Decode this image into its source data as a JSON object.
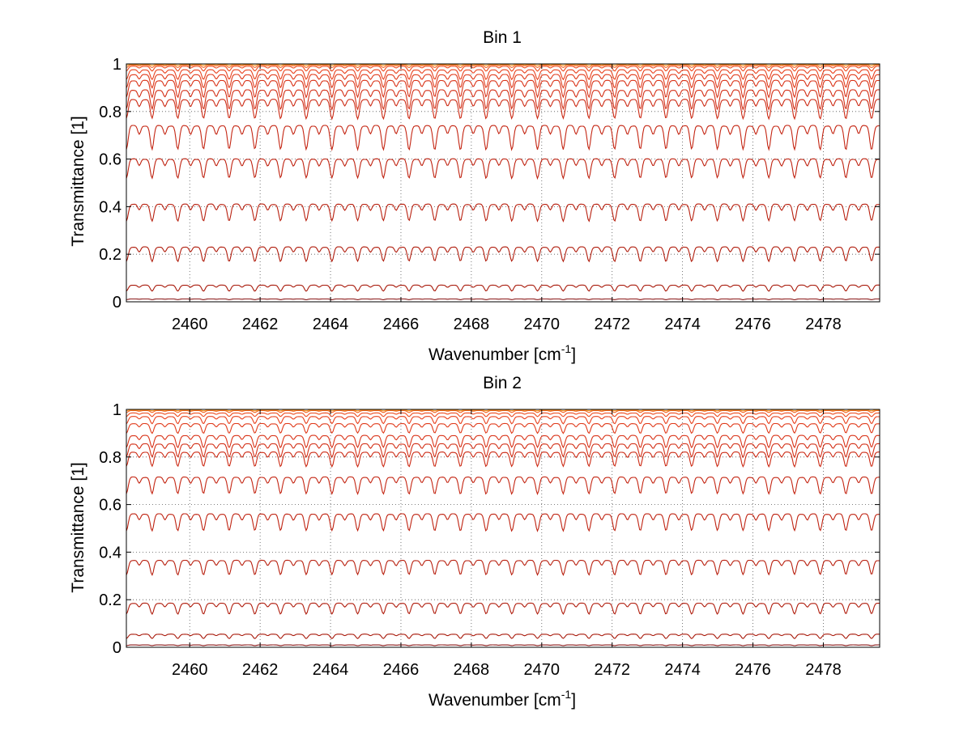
{
  "chart_data": [
    {
      "type": "line",
      "title": "Bin 1",
      "xlabel": "Wavenumber [cm",
      "xlabel_sup": "-1",
      "xlabel_end": "]",
      "ylabel": "Transmittance [1]",
      "xlim": [
        2458.2,
        2479.6
      ],
      "ylim": [
        0,
        1
      ],
      "grid": true,
      "xticks": [
        2460,
        2462,
        2464,
        2466,
        2468,
        2470,
        2472,
        2474,
        2476,
        2478
      ],
      "xtick_labels": [
        "2460",
        "2462",
        "2464",
        "2466",
        "2468",
        "2470",
        "2472",
        "2474",
        "2476",
        "2478"
      ],
      "yticks": [
        0,
        0.2,
        0.4,
        0.6,
        0.8,
        1
      ],
      "ytick_labels": [
        "0",
        "0.2",
        "0.4",
        "0.6",
        "0.8",
        "1"
      ],
      "line_spacing_cm-1": 0.73,
      "series": [
        {
          "color": "#f7941d",
          "baseline": 0.998,
          "dip": 0.004
        },
        {
          "color": "#f26522",
          "baseline": 0.995,
          "dip": 0.01
        },
        {
          "color": "#ee4b1f",
          "baseline": 0.99,
          "dip": 0.02
        },
        {
          "color": "#e8401c",
          "baseline": 0.975,
          "dip": 0.04
        },
        {
          "color": "#e03a1a",
          "baseline": 0.955,
          "dip": 0.055
        },
        {
          "color": "#d93318",
          "baseline": 0.93,
          "dip": 0.07
        },
        {
          "color": "#d32f16",
          "baseline": 0.89,
          "dip": 0.08
        },
        {
          "color": "#cc2a14",
          "baseline": 0.85,
          "dip": 0.08
        },
        {
          "color": "#c42512",
          "baseline": 0.74,
          "dip": 0.1
        },
        {
          "color": "#bf2210",
          "baseline": 0.6,
          "dip": 0.08
        },
        {
          "color": "#b81f0e",
          "baseline": 0.41,
          "dip": 0.07
        },
        {
          "color": "#b01c0c",
          "baseline": 0.23,
          "dip": 0.06
        },
        {
          "color": "#a8190a",
          "baseline": 0.07,
          "dip": 0.025
        },
        {
          "color": "#8b1a1a",
          "baseline": 0.012,
          "dip": 0.003
        }
      ]
    },
    {
      "type": "line",
      "title": "Bin 2",
      "xlabel": "Wavenumber [cm",
      "xlabel_sup": "-1",
      "xlabel_end": "]",
      "ylabel": "Transmittance [1]",
      "xlim": [
        2458.2,
        2479.6
      ],
      "ylim": [
        0,
        1
      ],
      "grid": true,
      "xticks": [
        2460,
        2462,
        2464,
        2466,
        2468,
        2470,
        2472,
        2474,
        2476,
        2478
      ],
      "xtick_labels": [
        "2460",
        "2462",
        "2464",
        "2466",
        "2468",
        "2470",
        "2472",
        "2474",
        "2476",
        "2478"
      ],
      "yticks": [
        0,
        0.2,
        0.4,
        0.6,
        0.8,
        1
      ],
      "ytick_labels": [
        "0",
        "0.2",
        "0.4",
        "0.6",
        "0.8",
        "1"
      ],
      "line_spacing_cm-1": 0.73,
      "series": [
        {
          "color": "#f7941d",
          "baseline": 0.998,
          "dip": 0.004
        },
        {
          "color": "#f26522",
          "baseline": 0.995,
          "dip": 0.008
        },
        {
          "color": "#ee4b1f",
          "baseline": 0.985,
          "dip": 0.015
        },
        {
          "color": "#e8401c",
          "baseline": 0.97,
          "dip": 0.03
        },
        {
          "color": "#e03a1a",
          "baseline": 0.94,
          "dip": 0.04
        },
        {
          "color": "#d93318",
          "baseline": 0.89,
          "dip": 0.05
        },
        {
          "color": "#d32f16",
          "baseline": 0.855,
          "dip": 0.055
        },
        {
          "color": "#cc2a14",
          "baseline": 0.82,
          "dip": 0.06
        },
        {
          "color": "#c42512",
          "baseline": 0.715,
          "dip": 0.07
        },
        {
          "color": "#bf2210",
          "baseline": 0.56,
          "dip": 0.07
        },
        {
          "color": "#b81f0e",
          "baseline": 0.365,
          "dip": 0.06
        },
        {
          "color": "#b01c0c",
          "baseline": 0.185,
          "dip": 0.045
        },
        {
          "color": "#a8190a",
          "baseline": 0.055,
          "dip": 0.018
        },
        {
          "color": "#8b1a1a",
          "baseline": 0.01,
          "dip": 0.003
        }
      ]
    }
  ]
}
